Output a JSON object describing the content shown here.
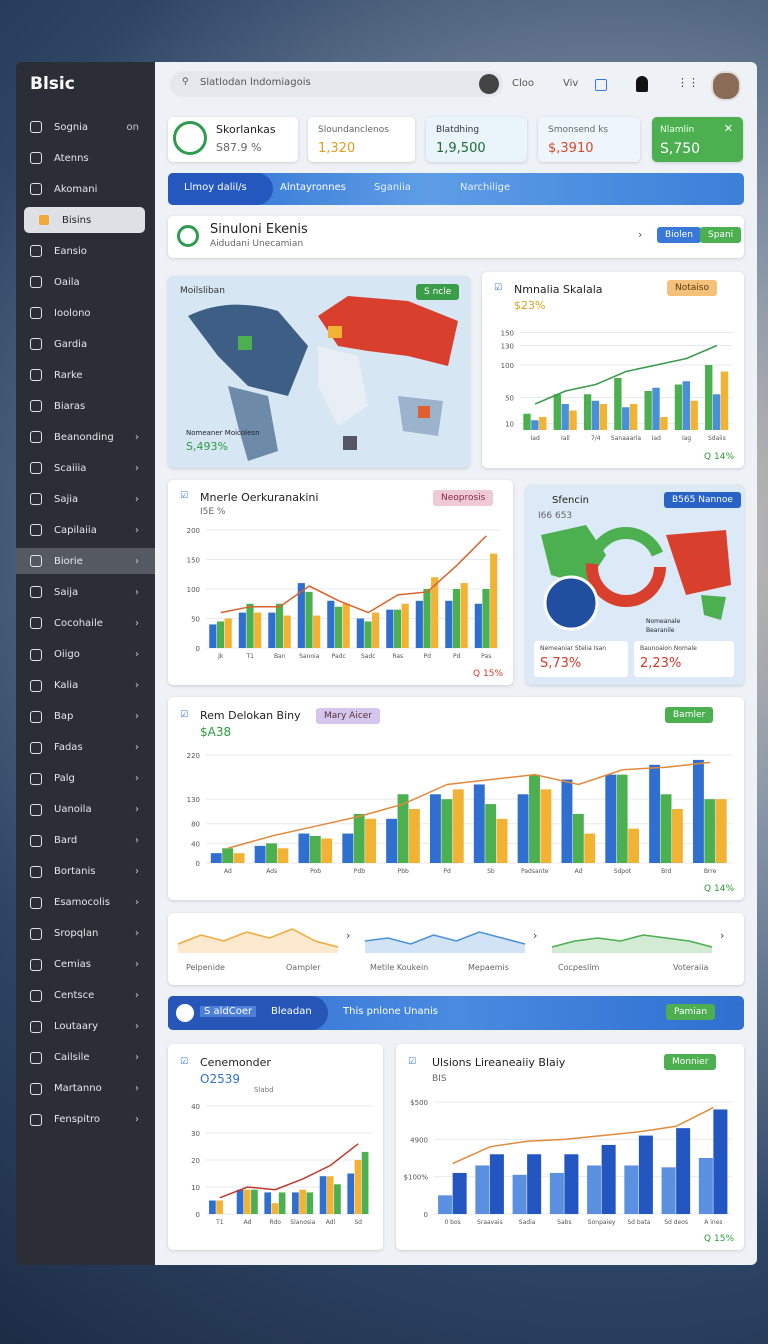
{
  "sidebar": {
    "logo": "Blsic",
    "items": [
      {
        "label": "Sognia",
        "extra": "on"
      },
      {
        "label": "Atenns"
      },
      {
        "label": "Akomani"
      },
      {
        "label": "Bisins",
        "selected": true
      },
      {
        "label": "Eansio"
      },
      {
        "label": "Oaila"
      },
      {
        "label": "Ioolono"
      },
      {
        "label": "Gardia"
      },
      {
        "label": "Rarke"
      },
      {
        "label": "Biaras"
      },
      {
        "label": "Beanonding"
      },
      {
        "label": "Scaiiia"
      },
      {
        "label": "Sajia"
      },
      {
        "label": "Capilaiia"
      },
      {
        "label": "Biorie",
        "highlighted": true
      },
      {
        "label": "Saija"
      },
      {
        "label": "Cocohaile"
      },
      {
        "label": "Oiigo"
      },
      {
        "label": "Kalia"
      },
      {
        "label": "Bap"
      },
      {
        "label": "Fadas"
      },
      {
        "label": "Palg"
      },
      {
        "label": "Uanoila"
      },
      {
        "label": "Bard"
      },
      {
        "label": "Bortanis"
      },
      {
        "label": "Esamocolis"
      },
      {
        "label": "Sropqlan"
      },
      {
        "label": "Cemias"
      },
      {
        "label": "Centsce"
      },
      {
        "label": "Loutaary"
      },
      {
        "label": "Cailsile"
      },
      {
        "label": "Martanno"
      },
      {
        "label": "Fenspitro"
      }
    ]
  },
  "topbar": {
    "search": "Slatlodan lndomiagois",
    "link1": "Cloo",
    "link2": "Viv"
  },
  "kpis": [
    {
      "label": "Skorlankas",
      "value": "S87.9 %"
    },
    {
      "label": "Sloundanclenos",
      "value": "1,320"
    },
    {
      "label": "Blatdhing",
      "value": "1,9,500"
    },
    {
      "label": "Smonsend ks",
      "value": "$,3910"
    },
    {
      "label": "Nlamlin",
      "value": "S,750"
    }
  ],
  "tabs": [
    "Llmoy dalil/s",
    "Alntayronnes",
    "Sganiia",
    "Narchilige"
  ],
  "banner": {
    "title": "Sinuloni Ekenis",
    "subtitle": "Aidudani Unecamian",
    "button1": "Biolen",
    "button2": "Spani"
  },
  "map_card": {
    "title": "Moilsliban",
    "badge": "S ncle",
    "legend": "Nomeaner Moicolesn",
    "value": "S,493%"
  },
  "region_card": {
    "title": "Sfencin",
    "subtitle": "I66 653",
    "badge": "B565 Nannoe",
    "stat1_label": "Nemeaniar Stelia Isan",
    "stat1_value": "S,73%",
    "stat2_label": "Baunoaion Nomale",
    "stat2_value": "2,23%",
    "legend1": "Nomeanale",
    "legend2": "Bearanile"
  },
  "charts": [
    {
      "type": "bar",
      "title": "Nmnalia Skalala",
      "subtitle": "$23%",
      "badge": "Notaiso",
      "footer": "Q 14%",
      "categories": [
        "Iad",
        "Iall",
        "7/4",
        "Sanaaarla",
        "Iad",
        "Iag",
        "Sdaiis"
      ],
      "ylim": [
        0,
        160
      ],
      "yticks": [
        10,
        50,
        100,
        130,
        150
      ],
      "series": [
        {
          "type": "bar",
          "color": "#4caf50",
          "values": [
            25,
            55,
            55,
            80,
            60,
            70,
            100
          ]
        },
        {
          "type": "bar",
          "color": "#4a90d9",
          "values": [
            15,
            40,
            45,
            35,
            65,
            75,
            55
          ]
        },
        {
          "type": "bar",
          "color": "#f2b233",
          "values": [
            20,
            30,
            40,
            40,
            20,
            45,
            90
          ]
        },
        {
          "type": "line",
          "color": "#3d9a4a",
          "values": [
            40,
            60,
            70,
            90,
            100,
            110,
            130
          ]
        }
      ]
    },
    {
      "type": "bar",
      "title": "Mnerle Oerkuranakini",
      "subtitle": "I5E %",
      "badge": "Neoprosis",
      "footer": "Q 15%",
      "categories": [
        "Jk",
        "T1",
        "Ban",
        "Sanoia",
        "Padc",
        "Sadc",
        "Ras",
        "Pd",
        "Pd",
        "Pas"
      ],
      "ylim": [
        0,
        200
      ],
      "yticks": [
        0,
        50,
        100,
        150,
        200
      ],
      "series": [
        {
          "type": "bar",
          "color": "#2f6fd0",
          "values": [
            40,
            60,
            60,
            110,
            80,
            50,
            65,
            80,
            80,
            75
          ]
        },
        {
          "type": "bar",
          "color": "#4caf50",
          "values": [
            45,
            75,
            75,
            95,
            70,
            45,
            65,
            100,
            100,
            100
          ]
        },
        {
          "type": "bar",
          "color": "#f2b233",
          "values": [
            50,
            60,
            55,
            55,
            75,
            60,
            75,
            120,
            110,
            160
          ]
        },
        {
          "type": "line",
          "color": "#d9622b",
          "values": [
            60,
            70,
            70,
            105,
            80,
            60,
            90,
            95,
            140,
            190
          ]
        }
      ]
    },
    {
      "type": "bar",
      "title": "Rem Delokan Biny",
      "subtitle": "$A38",
      "badge": "Mary Aicer",
      "button": "Bamler",
      "footer": "Q 14%",
      "categories": [
        "Ad",
        "Ads",
        "Pob",
        "Pdb",
        "Pbb",
        "Pd",
        "Sb",
        "Padsante",
        "Ad",
        "Sdpot",
        "Brd",
        "Brre"
      ],
      "ylim": [
        0,
        220
      ],
      "yticks": [
        0,
        40,
        80,
        130,
        220
      ],
      "series": [
        {
          "type": "bar",
          "color": "#2f6fd0",
          "values": [
            20,
            35,
            60,
            60,
            90,
            140,
            160,
            140,
            170,
            180,
            200,
            210
          ]
        },
        {
          "type": "bar",
          "color": "#4caf50",
          "values": [
            30,
            40,
            55,
            100,
            140,
            130,
            120,
            180,
            100,
            180,
            140,
            130
          ]
        },
        {
          "type": "bar",
          "color": "#f2b233",
          "values": [
            20,
            30,
            50,
            90,
            110,
            150,
            90,
            150,
            60,
            70,
            110,
            130
          ]
        },
        {
          "type": "line",
          "color": "#e08a3c",
          "values": [
            30,
            55,
            75,
            95,
            120,
            160,
            170,
            180,
            160,
            190,
            195,
            205
          ]
        }
      ]
    },
    {
      "type": "bar",
      "title": "Cenemonder",
      "subtitle": "O2539",
      "footer": "Slabd",
      "categories": [
        "T1",
        "Ad",
        "Rdo",
        "Slanosia",
        "Adl",
        "Sd"
      ],
      "ylim": [
        0,
        40
      ],
      "yticks": [
        0,
        10,
        20,
        30,
        40
      ],
      "series": [
        {
          "type": "bar",
          "color": "#2f6fd0",
          "values": [
            5,
            9,
            8,
            8,
            14,
            15
          ]
        },
        {
          "type": "bar",
          "color": "#f2b233",
          "values": [
            5,
            9,
            4,
            9,
            14,
            20
          ]
        },
        {
          "type": "bar",
          "color": "#4caf50",
          "values": [
            0,
            9,
            8,
            8,
            11,
            23
          ]
        },
        {
          "type": "line",
          "color": "#c0392b",
          "values": [
            6,
            10,
            9,
            13,
            18,
            26
          ]
        }
      ]
    },
    {
      "type": "bar",
      "title": "Ulsions Lireaneaiiy Blaiy",
      "subtitle": "BIS",
      "badge": "Monnier",
      "footer": "Q 15%",
      "categories": [
        "0 bos",
        "Sraavais",
        "Sadia",
        "Sabs",
        "Sonpaiey",
        "Sd bata",
        "Sd deos",
        "A ines"
      ],
      "ylim": [
        0,
        600
      ],
      "yticks": [
        0,
        {
          "value": 200,
          "label": "$100%"
        },
        {
          "value": 400,
          "label": "4900"
        },
        {
          "value": 600,
          "label": "$500"
        }
      ],
      "series": [
        {
          "type": "bar",
          "color": "#5b8fe0",
          "values": [
            100,
            260,
            210,
            220,
            260,
            260,
            250,
            300
          ]
        },
        {
          "type": "bar",
          "color": "#2456c2",
          "values": [
            220,
            320,
            320,
            320,
            370,
            420,
            460,
            560
          ]
        },
        {
          "type": "line",
          "color": "#e08a3c",
          "values": [
            270,
            360,
            390,
            400,
            420,
            440,
            470,
            570
          ]
        }
      ]
    }
  ],
  "sparklines": [
    {
      "color": "#f2a93b",
      "values": [
        3,
        6,
        4,
        7,
        5,
        8,
        4,
        2
      ],
      "legend": [
        "Pelpenide",
        "Oampler"
      ]
    },
    {
      "color": "#4a90d9",
      "values": [
        4,
        5,
        3,
        6,
        4,
        7,
        5,
        3
      ],
      "legend": [
        "Metile Koukein",
        "Mepaemis"
      ]
    },
    {
      "color": "#4caf50",
      "values": [
        2,
        4,
        5,
        4,
        6,
        5,
        4,
        2
      ],
      "legend": [
        "Cocpeslim",
        "Voteraiia"
      ]
    }
  ],
  "blue_banner": {
    "tab1": "S aldCoer",
    "tab2": "Bleadan",
    "title": "This pnlone Unanis",
    "button": "Pamian"
  }
}
